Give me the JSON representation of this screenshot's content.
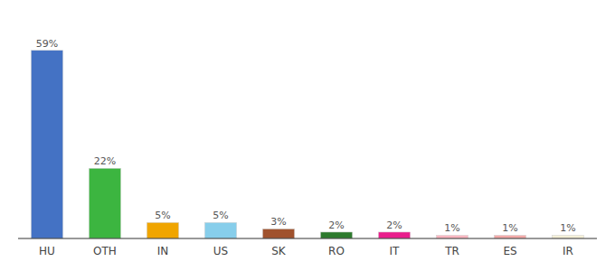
{
  "chart_data": {
    "type": "bar",
    "categories": [
      "HU",
      "OTH",
      "IN",
      "US",
      "SK",
      "RO",
      "IT",
      "TR",
      "ES",
      "IR"
    ],
    "values": [
      59,
      22,
      5,
      5,
      3,
      2,
      2,
      1,
      1,
      1
    ],
    "value_labels": [
      "59%",
      "22%",
      "5%",
      "5%",
      "3%",
      "2%",
      "2%",
      "1%",
      "1%",
      "1%"
    ],
    "colors": [
      "#4472c4",
      "#3cb540",
      "#f0a500",
      "#87ceeb",
      "#a0522d",
      "#2d7a2d",
      "#e91e8c",
      "#ffb6c1",
      "#f4a9a8",
      "#f5f0d8"
    ],
    "ylim": [
      0,
      68
    ],
    "data_labels": true,
    "tick_labels": "x",
    "grid": false
  }
}
